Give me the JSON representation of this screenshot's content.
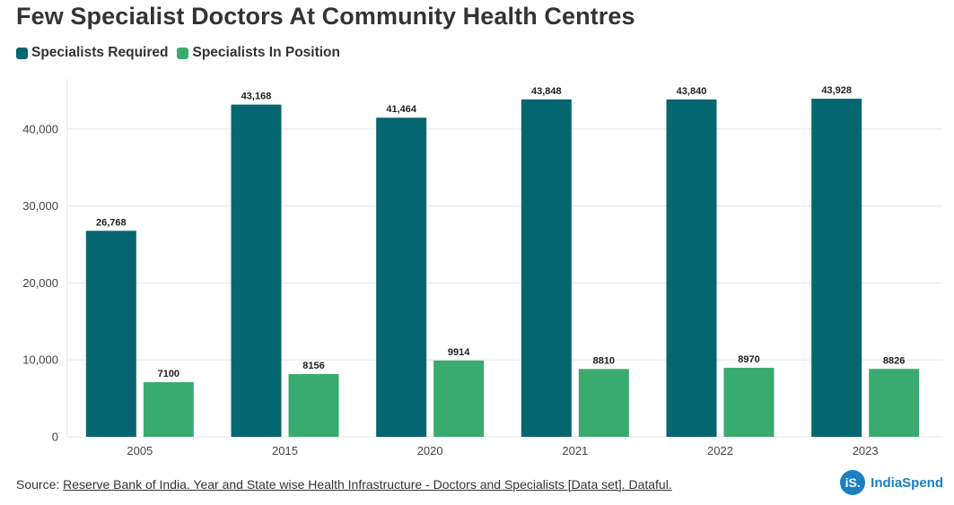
{
  "colors": {
    "required": "#05666f",
    "in_position": "#3aab6f",
    "grid": "#e6e6e6"
  },
  "chart_data": {
    "type": "bar",
    "title": "Few Specialist Doctors At Community Health Centres",
    "categories": [
      "2005",
      "2015",
      "2020",
      "2021",
      "2022",
      "2023"
    ],
    "series": [
      {
        "name": "Specialists Required",
        "values": [
          26768,
          43168,
          41464,
          43848,
          43840,
          43928
        ],
        "labels": [
          "26,768",
          "43,168",
          "41,464",
          "43,848",
          "43,840",
          "43,928"
        ]
      },
      {
        "name": "Specialists In Position",
        "values": [
          7100,
          8156,
          9914,
          8810,
          8970,
          8826
        ],
        "labels": [
          "7100",
          "8156",
          "9914",
          "8810",
          "8970",
          "8826"
        ]
      }
    ],
    "yticks": [
      0,
      10000,
      20000,
      30000,
      40000
    ],
    "ytick_labels": [
      "0",
      "10,000",
      "20,000",
      "30,000",
      "40,000"
    ],
    "ylim": [
      0,
      46500
    ],
    "legend_position": "top-left"
  },
  "footer": {
    "source_prefix": "Source: ",
    "source_link": "Reserve Bank of India. Year and State wise Health Infrastructure - Doctors and Specialists [Data set]. Dataful."
  },
  "brand": {
    "icon_text": "iS.",
    "name": "IndiaSpend"
  }
}
